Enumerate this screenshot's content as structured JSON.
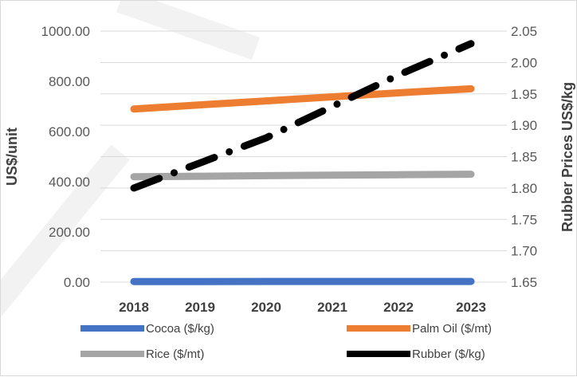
{
  "chart_data": {
    "type": "line",
    "title": "",
    "x": [
      2018,
      2019,
      2020,
      2021,
      2022,
      2023
    ],
    "xlabels": [
      "2018",
      "2019",
      "2020",
      "2021",
      "2022",
      "2023"
    ],
    "ylabel_left": "US$/unit",
    "ylabel_right": "Rubber Prices US$/kg",
    "ylim_left": [
      0,
      1000
    ],
    "ylim_right": [
      1.65,
      2.05
    ],
    "yticks_left": [
      "0.00",
      "200.00",
      "400.00",
      "600.00",
      "800.00",
      "1000.00"
    ],
    "yticks_right": [
      "1.65",
      "1.70",
      "1.75",
      "1.80",
      "1.85",
      "1.90",
      "1.95",
      "2.00",
      "2.05"
    ],
    "grid": true,
    "legend_position": "bottom",
    "series": [
      {
        "name": "Cocoa ($/kg)",
        "axis": "left",
        "color": "#4472c4",
        "style": "solid",
        "values": [
          2.5,
          2.6,
          2.7,
          2.8,
          2.9,
          3.0
        ]
      },
      {
        "name": "Palm Oil ($/mt)",
        "axis": "left",
        "color": "#ed7d31",
        "style": "solid",
        "values": [
          690,
          706,
          722,
          738,
          754,
          770
        ]
      },
      {
        "name": "Rice ($/mt)",
        "axis": "left",
        "color": "#a5a5a5",
        "style": "solid",
        "values": [
          420,
          422,
          424,
          426,
          428,
          430
        ]
      },
      {
        "name": "Rubber ($/kg)",
        "axis": "right",
        "color": "#000000",
        "style": "dash-dot",
        "values": [
          1.8,
          1.84,
          1.88,
          1.93,
          1.98,
          2.03
        ]
      }
    ]
  }
}
